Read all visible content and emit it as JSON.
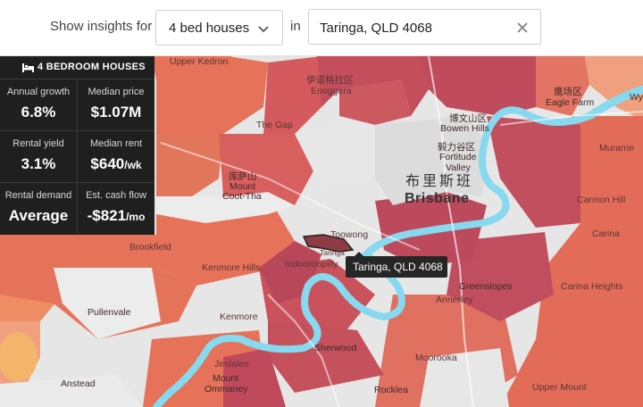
{
  "toolbar": {
    "show_label": "Show insights for",
    "property_type": "4 bed houses",
    "in_label": "in",
    "location_value": "Taringa, QLD 4068"
  },
  "panel": {
    "title": "4 BEDROOM HOUSES",
    "bed_icon": "bed-icon",
    "metrics": [
      {
        "label": "Annual growth",
        "value": "6.8%",
        "unit": ""
      },
      {
        "label": "Median price",
        "value": "$1.07M",
        "unit": ""
      },
      {
        "label": "Rental yield",
        "value": "3.1%",
        "unit": ""
      },
      {
        "label": "Median rent",
        "value": "$640",
        "unit": "/wk"
      },
      {
        "label": "Rental demand",
        "value": "Average",
        "unit": ""
      },
      {
        "label": "Est. cash flow",
        "value": "-$821",
        "unit": "/mo"
      }
    ]
  },
  "map": {
    "tooltip": "Taringa, QLD 4068",
    "selected_suburb": "Taringa",
    "colors": {
      "high": "#c2505b",
      "mid": "#dd6660",
      "low": "#ea7a5a",
      "lowest": "#f2a07c",
      "river": "#83d8ec",
      "land": "#e9e9e9",
      "selected_outline": "#222222"
    },
    "labels": {
      "upper_kedron": "Upper Kedron",
      "enoggera_cn": "伊诺格拉区",
      "enoggera": "Enoggera",
      "eagle_farm_cn": "鹰场区",
      "eagle_farm": "Eagle Farm",
      "bowen_hills_cn": "博文山区",
      "bowen_hills": "Bowen Hills",
      "fortitude_valley_cn": "毅力谷区",
      "fortitude_valley_a": "Fortitude",
      "fortitude_valley_b": "Valley",
      "the_gap": "The Gap",
      "mount_coot_tha_cn": "库萨山",
      "mount_coot_tha_a": "Mount",
      "mount_coot_tha_b": "Coot-Tha",
      "brisbane_cn": "布里斯班",
      "brisbane": "Brisbane",
      "murarrie": "Murarrie",
      "cannon_hill": "Cannon Hill",
      "toowong": "Toowong",
      "brookfield": "Brookfield",
      "kenmore_hills": "Kenmore Hills",
      "indooroopilly": "Indooroopilly",
      "carina": "Carina",
      "carina_heights": "Carina Heights",
      "greenslopes": "Greenslopes",
      "annerley": "Annerley",
      "pullenvale": "Pullenvale",
      "kenmore": "Kenmore",
      "sherwood": "Sherwood",
      "moorooka": "Moorooka",
      "jindalee": "Jindalee",
      "anstead": "Anstead",
      "mount_ommaney_a": "Mount",
      "mount_ommaney_b": "Ommaney",
      "rocklea": "Rocklea",
      "upper_mount": "Upper Mount",
      "wynnum_partial": "Wy",
      "taringa_small": "Taringa"
    }
  }
}
